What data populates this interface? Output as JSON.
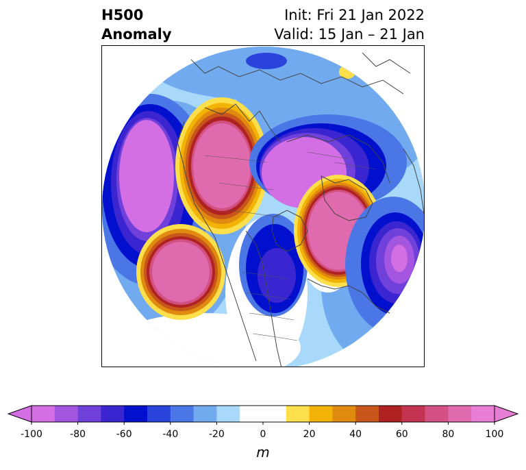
{
  "title": {
    "left_line1": "H500",
    "left_line2": "Anomaly",
    "right_line1": "Init: Fri 21 Jan 2022",
    "right_line2": "Valid: 15 Jan – 21 Jan"
  },
  "colorbar": {
    "unit": "m",
    "ticks": [
      "-100",
      "-80",
      "-60",
      "-40",
      "-20",
      "0",
      "20",
      "40",
      "60",
      "80",
      "100"
    ],
    "colors": [
      "#d36ee4",
      "#a456e0",
      "#7040db",
      "#3a25d1",
      "#0010cc",
      "#2a44db",
      "#4b76e6",
      "#72aaf0",
      "#a8d8fa",
      "#ffffff",
      "#ffffff",
      "#fddf4c",
      "#f2b304",
      "#e08a10",
      "#c8561a",
      "#b02222",
      "#c43452",
      "#d25182",
      "#df6aad",
      "#e87dd6"
    ]
  }
}
